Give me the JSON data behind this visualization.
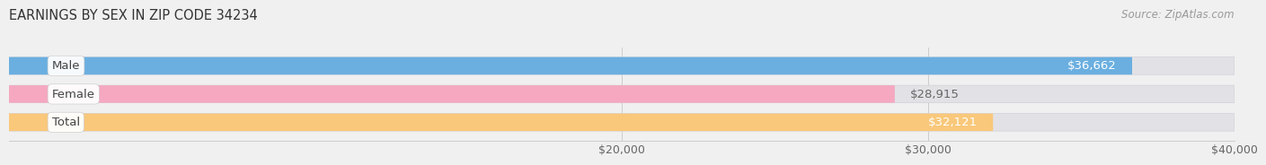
{
  "title": "EARNINGS BY SEX IN ZIP CODE 34234",
  "source": "Source: ZipAtlas.com",
  "categories": [
    "Male",
    "Female",
    "Total"
  ],
  "values": [
    36662,
    28915,
    32121
  ],
  "bar_colors": [
    "#6aafe0",
    "#f5a8c0",
    "#f9c87a"
  ],
  "value_labels": [
    "$36,662",
    "$28,915",
    "$32,121"
  ],
  "label_colors_inside": [
    "white",
    "#888888",
    "white"
  ],
  "xmin": 0,
  "xmax": 40000,
  "xticks": [
    20000,
    30000,
    40000
  ],
  "xticklabels": [
    "$20,000",
    "$30,000",
    "$40,000"
  ],
  "background_color": "#f0f0f0",
  "bar_bg_color": "#e2e2e6",
  "title_fontsize": 10.5,
  "source_fontsize": 8.5,
  "label_fontsize": 9.5,
  "value_fontsize": 9.5
}
